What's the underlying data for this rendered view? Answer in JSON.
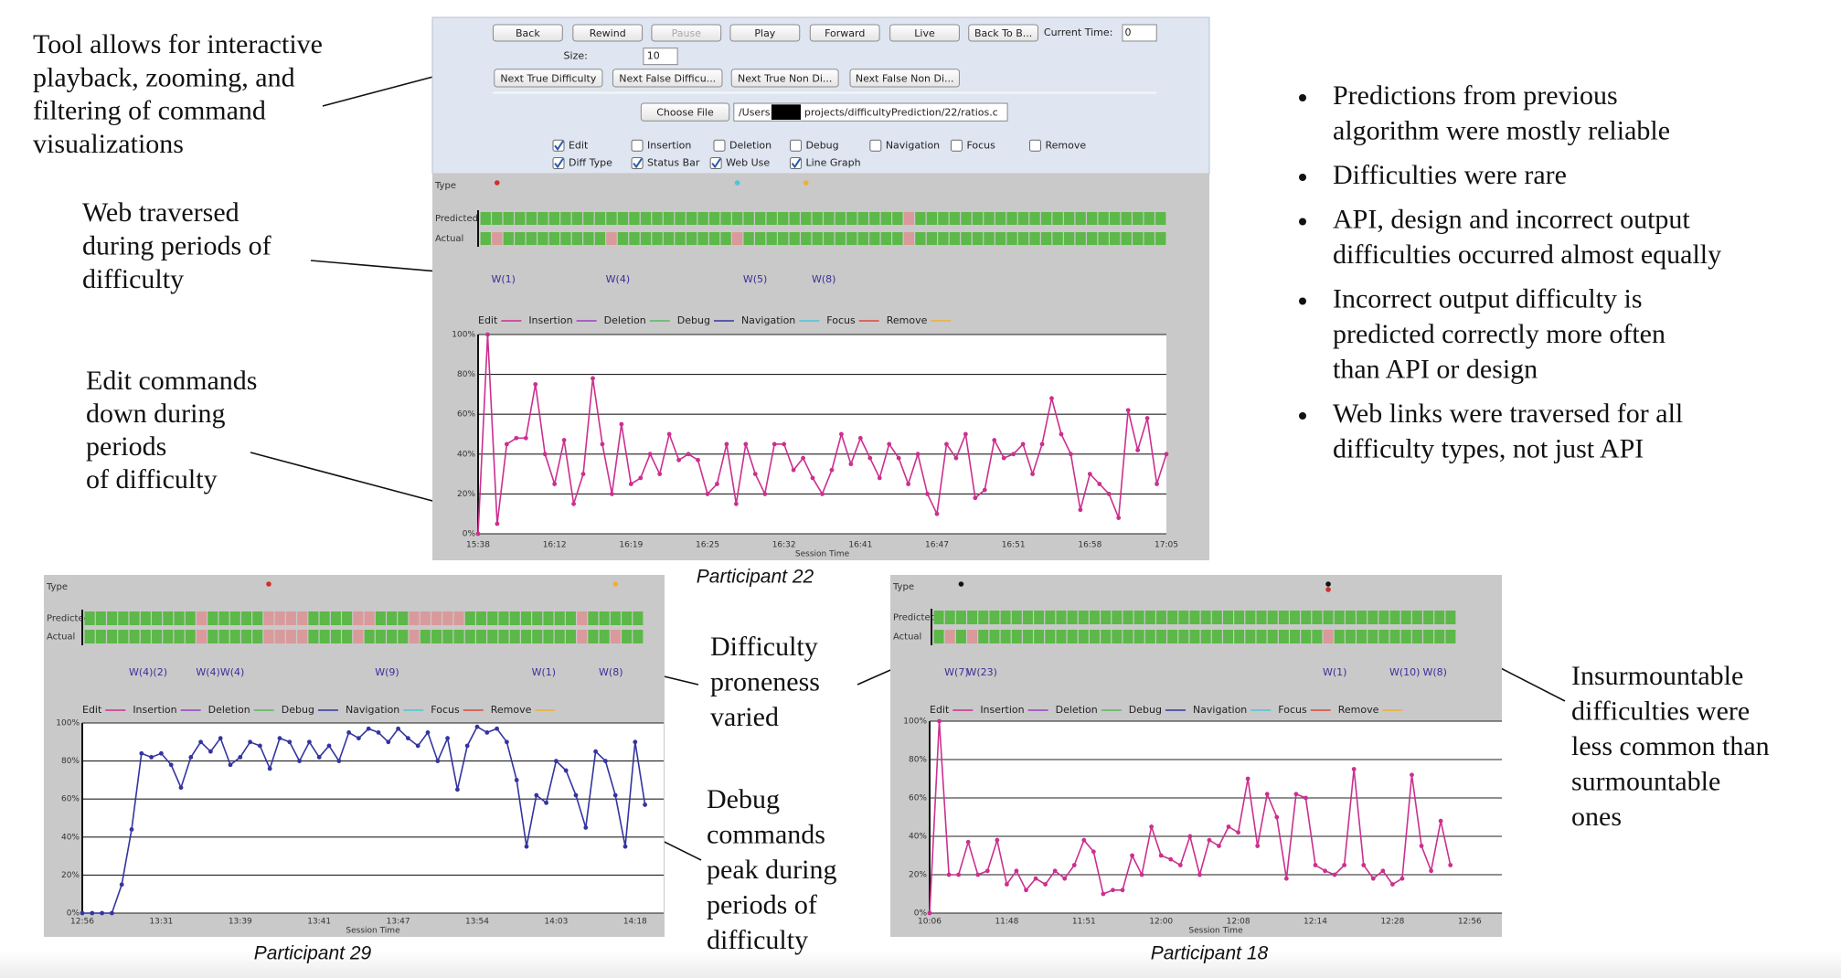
{
  "annotations": [
    {
      "lines": [
        "Tool allows for interactive",
        "playback, zooming, and",
        "filtering of command",
        "visualizations"
      ]
    },
    {
      "lines": [
        "Web traversed",
        "during periods of",
        "difficulty"
      ]
    },
    {
      "lines": [
        "Edit commands",
        "down during",
        "periods",
        "of difficulty"
      ]
    },
    {
      "lines": [
        "Difficulty",
        "proneness",
        "varied"
      ]
    },
    {
      "lines": [
        "Debug",
        "commands",
        "peak during",
        "periods of",
        "difficulty"
      ]
    },
    {
      "lines": [
        "Insurmountable",
        "difficulties were",
        "less common than",
        "surmountable",
        "ones"
      ]
    }
  ],
  "bullets": [
    [
      "Predictions from previous",
      "algorithm were mostly reliable"
    ],
    [
      "Difficulties were rare"
    ],
    [
      "API, design and incorrect output",
      "difficulties occurred almost equally"
    ],
    [
      "Incorrect output difficulty is",
      "predicted correctly more often",
      "than API or design"
    ],
    [
      "Web links were traversed for all",
      "difficulty types, not just API"
    ]
  ],
  "toolbar": {
    "buttons": [
      {
        "label": "Back"
      },
      {
        "label": "Rewind"
      },
      {
        "label": "Pause",
        "enabled": false
      },
      {
        "label": "Play"
      },
      {
        "label": "Forward"
      },
      {
        "label": "Live"
      },
      {
        "label": "Back To B..."
      }
    ],
    "current_time_label": "Current Time:",
    "current_time": "0",
    "size_label": "Size:",
    "size": "10",
    "nav_buttons": [
      "Next True Difficulty",
      "Next False Difficu...",
      "Next True Non Di...",
      "Next False Non Di..."
    ],
    "choose_file": "Choose File",
    "path_start": "/Users",
    "path_end": "projects/difficultyPrediction/22/ratios.c",
    "checkboxes": [
      {
        "label": "Edit",
        "checked": true
      },
      {
        "label": "Insertion",
        "checked": false
      },
      {
        "label": "Deletion",
        "checked": false
      },
      {
        "label": "Debug",
        "checked": false
      },
      {
        "label": "Navigation",
        "checked": false
      },
      {
        "label": "Focus",
        "checked": false
      },
      {
        "label": "Remove",
        "checked": false
      },
      {
        "label": "Diff Type",
        "checked": true
      },
      {
        "label": "Status Bar",
        "checked": true
      },
      {
        "label": "Web Use",
        "checked": true
      },
      {
        "label": "Line Graph",
        "checked": true
      }
    ]
  },
  "chart_data": [
    {
      "type": "line",
      "caption": "Participant 22",
      "x_label": "Session Time",
      "status_labels": {
        "type": "Type",
        "predicted": "Predicted",
        "actual": "Actual"
      },
      "status_colors": {
        "ok": "#5cb848",
        "difficulty": "#d99a9c"
      },
      "status": {
        "predicted": [
          0,
          0,
          0,
          0,
          0,
          0,
          0,
          0,
          0,
          0,
          0,
          0,
          0,
          0,
          0,
          0,
          0,
          0,
          0,
          0,
          0,
          0,
          0,
          0,
          0,
          0,
          0,
          0,
          0,
          0,
          0,
          0,
          0,
          0,
          0,
          0,
          0,
          1,
          0,
          0,
          0,
          0,
          0,
          0,
          0,
          0,
          0,
          0,
          0,
          0,
          0,
          0,
          0,
          0,
          0,
          0,
          0,
          0,
          0,
          0
        ],
        "actual": [
          0,
          1,
          0,
          0,
          0,
          0,
          0,
          0,
          0,
          0,
          0,
          1,
          0,
          0,
          0,
          0,
          0,
          0,
          0,
          0,
          0,
          0,
          1,
          0,
          0,
          0,
          0,
          0,
          0,
          0,
          0,
          0,
          0,
          0,
          0,
          0,
          0,
          1,
          0,
          0,
          0,
          0,
          0,
          0,
          0,
          0,
          0,
          0,
          0,
          0,
          0,
          0,
          0,
          0,
          0,
          0,
          0,
          0,
          0,
          0
        ]
      },
      "type_markers": [
        {
          "segment": 1,
          "color": "#d0302a"
        },
        {
          "segment": 22,
          "color": "#4fc3d9"
        },
        {
          "segment": 28,
          "color": "#f0b030"
        }
      ],
      "web_labels": [
        {
          "label": "W(1)",
          "segment": 1
        },
        {
          "label": "W(4)",
          "segment": 11
        },
        {
          "label": "W(5)",
          "segment": 23
        },
        {
          "label": "W(8)",
          "segment": 29
        }
      ],
      "categories": [
        "15:38",
        null,
        null,
        null,
        null,
        null,
        null,
        null,
        "16:12",
        null,
        null,
        null,
        null,
        null,
        null,
        null,
        "16:19",
        null,
        null,
        null,
        null,
        null,
        null,
        null,
        "16:25",
        null,
        null,
        null,
        null,
        null,
        null,
        null,
        "16:32",
        null,
        null,
        null,
        null,
        null,
        null,
        null,
        "16:41",
        null,
        null,
        null,
        null,
        null,
        null,
        null,
        "16:47",
        null,
        null,
        null,
        null,
        null,
        null,
        null,
        "16:51",
        null,
        null,
        null,
        null,
        null,
        null,
        null,
        "16:58",
        null,
        null,
        null,
        null,
        null,
        null,
        null,
        "17:05"
      ],
      "series": [
        {
          "name": "Edit",
          "color": "#cc2f8f",
          "values": [
            0,
            100,
            5,
            45,
            48,
            48,
            75,
            40,
            25,
            47,
            15,
            30,
            78,
            45,
            20,
            55,
            25,
            28,
            40,
            30,
            50,
            37,
            40,
            37,
            20,
            25,
            45,
            15,
            45,
            30,
            20,
            45,
            45,
            32,
            38,
            28,
            20,
            32,
            50,
            35,
            48,
            38,
            28,
            45,
            38,
            25,
            40,
            20,
            10,
            45,
            38,
            50,
            18,
            22,
            47,
            38,
            40,
            45,
            30,
            45,
            68,
            50,
            40,
            12,
            30,
            25,
            20,
            8,
            62,
            42,
            58,
            25,
            40
          ]
        },
        {
          "name": "Insertion",
          "color": "#9b3fc0"
        },
        {
          "name": "Deletion",
          "color": "#5cb85c"
        },
        {
          "name": "Debug",
          "color": "#3434a0"
        },
        {
          "name": "Navigation",
          "color": "#4fc3d9"
        },
        {
          "name": "Focus",
          "color": "#e0453a"
        },
        {
          "name": "Remove",
          "color": "#f0b030"
        }
      ],
      "ylim": [
        0,
        100
      ],
      "yticks": [
        {
          "value": 0,
          "label": "0%"
        },
        {
          "value": 20,
          "label": "20%"
        },
        {
          "value": 40,
          "label": "40%"
        },
        {
          "value": 60,
          "label": "60%"
        },
        {
          "value": 80,
          "label": "80%"
        },
        {
          "value": 100,
          "label": "100%"
        }
      ],
      "grid": true
    },
    {
      "type": "line",
      "caption": "Participant 29",
      "x_label": "Session Time",
      "status_labels": {
        "type": "Type",
        "predicted": "Predicted",
        "actual": "Actual"
      },
      "status_colors": {
        "ok": "#5cb848",
        "difficulty": "#d99a9c"
      },
      "status": {
        "predicted": [
          0,
          0,
          0,
          0,
          0,
          0,
          0,
          0,
          0,
          0,
          1,
          0,
          0,
          0,
          0,
          0,
          1,
          1,
          1,
          1,
          0,
          0,
          0,
          0,
          1,
          1,
          0,
          0,
          0,
          1,
          1,
          1,
          1,
          1,
          0,
          0,
          0,
          0,
          0,
          0,
          0,
          0,
          0,
          0,
          1,
          0,
          0,
          0,
          0,
          0
        ],
        "actual": [
          0,
          0,
          0,
          0,
          0,
          0,
          0,
          0,
          0,
          0,
          1,
          0,
          0,
          0,
          0,
          0,
          1,
          1,
          1,
          1,
          0,
          0,
          0,
          0,
          1,
          0,
          0,
          0,
          0,
          1,
          0,
          0,
          0,
          0,
          0,
          0,
          0,
          0,
          0,
          0,
          0,
          0,
          0,
          0,
          1,
          0,
          0,
          1,
          0,
          0
        ]
      },
      "type_markers": [
        {
          "segment": 16,
          "color": "#d0302a"
        },
        {
          "segment": 47,
          "color": "#f0b030"
        }
      ],
      "web_labels": [
        {
          "label": "W(4)(2)",
          "segment": 4
        },
        {
          "label": "W(4)W(4)",
          "segment": 10
        },
        {
          "label": "W(9)",
          "segment": 26
        },
        {
          "label": "W(1)",
          "segment": 40
        },
        {
          "label": "W(8)",
          "segment": 46
        }
      ],
      "categories": [
        "12:56",
        null,
        null,
        null,
        null,
        null,
        null,
        null,
        "13:31",
        null,
        null,
        null,
        null,
        null,
        null,
        null,
        "13:39",
        null,
        null,
        null,
        null,
        null,
        null,
        null,
        "13:41",
        null,
        null,
        null,
        null,
        null,
        null,
        null,
        "13:47",
        null,
        null,
        null,
        null,
        null,
        null,
        null,
        "13:54",
        null,
        null,
        null,
        null,
        null,
        null,
        null,
        "14:03",
        null,
        null,
        null,
        null,
        null,
        null,
        null,
        "14:18",
        null
      ],
      "series": [
        {
          "name": "Edit",
          "color": "#cc2f8f"
        },
        {
          "name": "Insertion",
          "color": "#9b3fc0"
        },
        {
          "name": "Deletion",
          "color": "#5cb85c"
        },
        {
          "name": "Debug",
          "color": "#3434a0",
          "values": [
            0,
            0,
            0,
            0,
            15,
            44,
            84,
            82,
            84,
            78,
            66,
            82,
            90,
            85,
            92,
            78,
            82,
            90,
            88,
            76,
            92,
            90,
            80,
            90,
            82,
            88,
            80,
            95,
            92,
            97,
            95,
            90,
            97,
            92,
            88,
            95,
            80,
            92,
            65,
            88,
            98,
            95,
            97,
            90,
            70,
            35,
            62,
            58,
            80,
            75,
            62,
            45,
            85,
            80,
            62,
            35,
            90,
            57
          ]
        },
        {
          "name": "Navigation",
          "color": "#4fc3d9"
        },
        {
          "name": "Focus",
          "color": "#e0453a"
        },
        {
          "name": "Remove",
          "color": "#f0b030"
        }
      ],
      "ylim": [
        0,
        100
      ],
      "yticks": [
        {
          "value": 0,
          "label": "0%"
        },
        {
          "value": 20,
          "label": "20%"
        },
        {
          "value": 40,
          "label": "40%"
        },
        {
          "value": 60,
          "label": "60%"
        },
        {
          "value": 80,
          "label": "80%"
        },
        {
          "value": 100,
          "label": "100%"
        }
      ],
      "grid": true
    },
    {
      "type": "line",
      "caption": "Participant 18",
      "x_label": "Session Time",
      "status_labels": {
        "type": "Type",
        "predicted": "Predicted",
        "actual": "Actual"
      },
      "status_colors": {
        "ok": "#5cb848",
        "difficulty": "#d99a9c"
      },
      "status": {
        "predicted": [
          0,
          0,
          0,
          0,
          0,
          0,
          0,
          0,
          0,
          0,
          0,
          0,
          0,
          0,
          0,
          0,
          0,
          0,
          0,
          0,
          0,
          0,
          0,
          0,
          0,
          0,
          0,
          0,
          0,
          0,
          0,
          0,
          0,
          0,
          0,
          0,
          0,
          0,
          0,
          0,
          0,
          0,
          0,
          0,
          0,
          0,
          0
        ],
        "actual": [
          0,
          1,
          0,
          1,
          0,
          0,
          0,
          0,
          0,
          0,
          0,
          0,
          0,
          0,
          0,
          0,
          0,
          0,
          0,
          0,
          0,
          0,
          0,
          0,
          0,
          0,
          0,
          0,
          0,
          0,
          0,
          0,
          0,
          0,
          0,
          1,
          0,
          0,
          0,
          0,
          0,
          0,
          0,
          0,
          0,
          0,
          0
        ]
      },
      "type_markers": [
        {
          "segment": 2,
          "color": "#111111"
        },
        {
          "segment": 35,
          "color": "#111111"
        },
        {
          "segment": 35,
          "color": "#d0302a"
        }
      ],
      "web_labels": [
        {
          "label": "W(7)",
          "segment": 1
        },
        {
          "label": "W(23)",
          "segment": 3
        },
        {
          "label": "W(1)",
          "segment": 35
        },
        {
          "label": "W(10)",
          "segment": 41
        },
        {
          "label": "W(8)",
          "segment": 44
        }
      ],
      "categories": [
        "10:06",
        null,
        null,
        null,
        null,
        null,
        null,
        null,
        "11:48",
        null,
        null,
        null,
        null,
        null,
        null,
        null,
        "11:51",
        null,
        null,
        null,
        null,
        null,
        null,
        null,
        "12:00",
        null,
        null,
        null,
        null,
        null,
        null,
        null,
        "12:08",
        null,
        null,
        null,
        null,
        null,
        null,
        null,
        "12:14",
        null,
        null,
        null,
        null,
        null,
        null,
        null,
        "12:28",
        null,
        null,
        null,
        null,
        null,
        null,
        null,
        "12:56"
      ],
      "series": [
        {
          "name": "Edit",
          "color": "#cc2f8f",
          "values": [
            0,
            100,
            20,
            20,
            37,
            20,
            22,
            38,
            15,
            22,
            12,
            18,
            15,
            22,
            18,
            25,
            38,
            32,
            10,
            12,
            12,
            30,
            20,
            45,
            30,
            28,
            25,
            40,
            20,
            38,
            35,
            45,
            42,
            70,
            35,
            62,
            50,
            18,
            62,
            60,
            25,
            22,
            20,
            25,
            75,
            25,
            18,
            22,
            15,
            18,
            72,
            35,
            22,
            48,
            25,
            null,
            null
          ]
        },
        {
          "name": "Insertion",
          "color": "#9b3fc0"
        },
        {
          "name": "Deletion",
          "color": "#5cb85c"
        },
        {
          "name": "Debug",
          "color": "#3434a0"
        },
        {
          "name": "Navigation",
          "color": "#4fc3d9"
        },
        {
          "name": "Focus",
          "color": "#e0453a"
        },
        {
          "name": "Remove",
          "color": "#f0b030"
        }
      ],
      "ylim": [
        0,
        100
      ],
      "yticks": [
        {
          "value": 0,
          "label": "0%"
        },
        {
          "value": 20,
          "label": "20%"
        },
        {
          "value": 40,
          "label": "40%"
        },
        {
          "value": 60,
          "label": "60%"
        },
        {
          "value": 80,
          "label": "80%"
        },
        {
          "value": 100,
          "label": "100%"
        }
      ],
      "grid": true
    }
  ]
}
